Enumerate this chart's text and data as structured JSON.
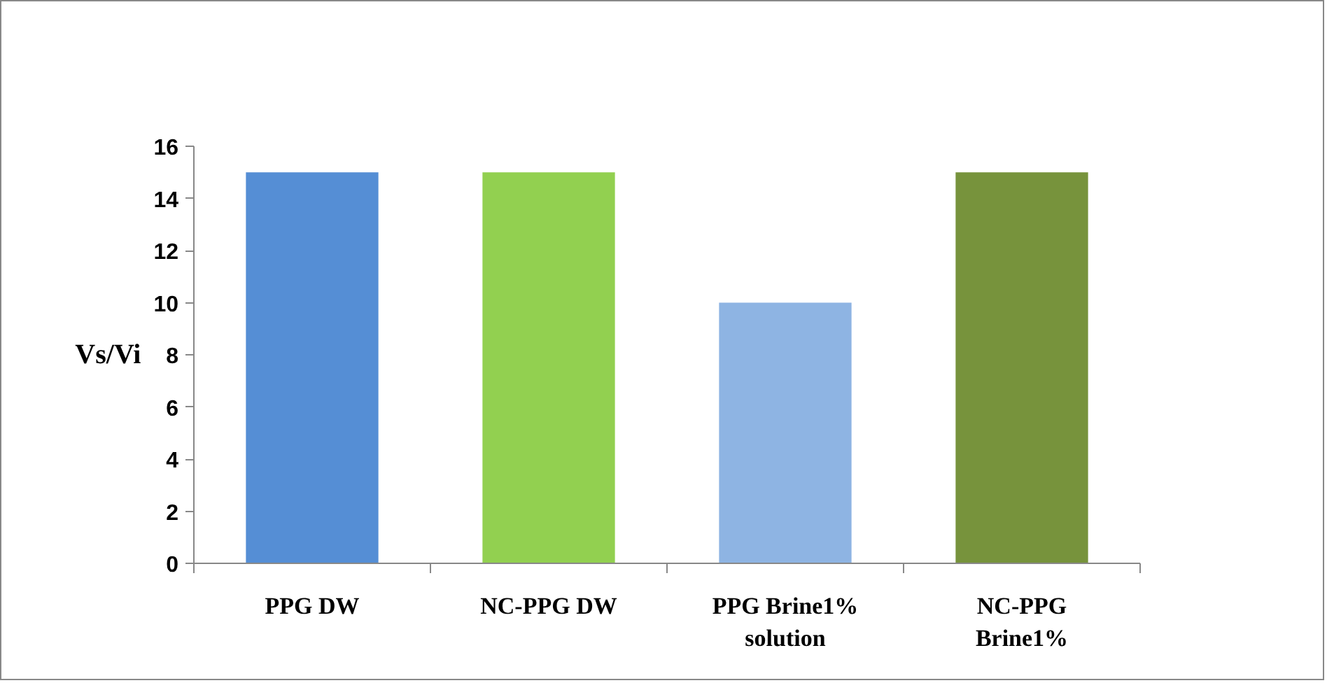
{
  "chart_data": {
    "type": "bar",
    "ylabel": "Vs/Vi",
    "categories": [
      "PPG DW",
      "NC-PPG DW",
      "PPG Brine1%\nsolution",
      "NC-PPG\nBrine1%"
    ],
    "values": [
      15,
      15,
      10,
      15
    ],
    "colors": [
      "#558ed5",
      "#92d050",
      "#8eb4e3",
      "#77933c"
    ],
    "ylim": [
      0,
      16
    ],
    "yticks": [
      0,
      2,
      4,
      6,
      8,
      10,
      12,
      14,
      16
    ],
    "grid": false
  }
}
